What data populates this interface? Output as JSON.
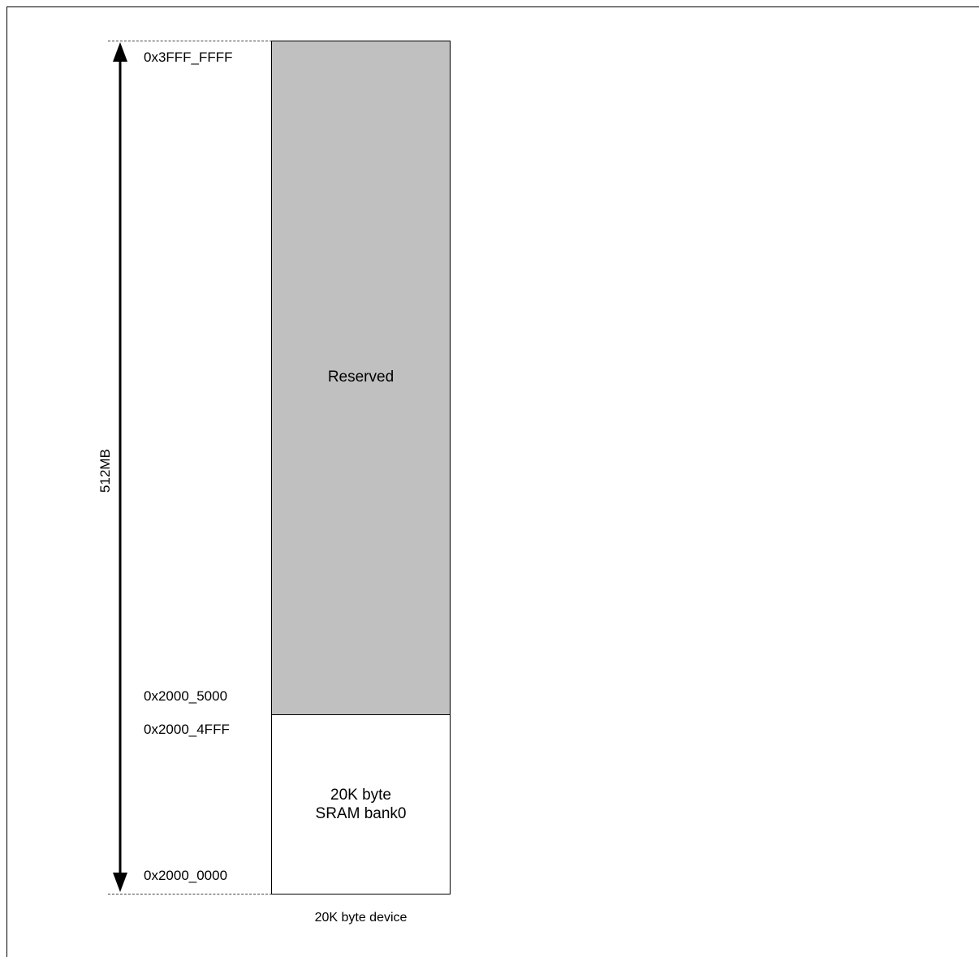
{
  "diagram": {
    "range_label": "512MB",
    "addresses": [
      "0x3FFF_FFFF",
      "0x2000_5000",
      "0x2000_4FFF",
      "0x2000_0000"
    ],
    "blocks": {
      "reserved": {
        "label": "Reserved",
        "color": "#c0c0c0"
      },
      "sram": {
        "label_lines": [
          "20K byte",
          "SRAM bank0"
        ],
        "color": "#ffffff"
      }
    },
    "caption": "20K byte device"
  }
}
